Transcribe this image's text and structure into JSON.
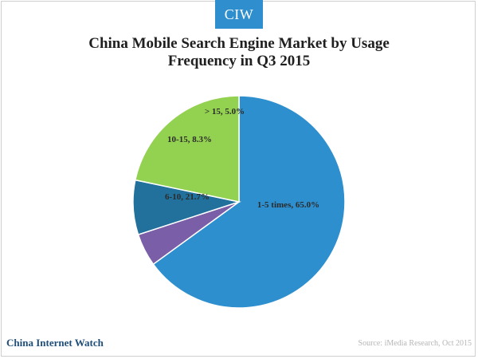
{
  "logo": {
    "text": "CIW"
  },
  "chart_data": {
    "type": "pie",
    "title": "China Mobile Search Engine Market by Usage Frequency in Q3 2015",
    "slices": [
      {
        "label": "1-5 times",
        "value": 65.0,
        "display": "1-5 times, 65.0%",
        "color": "#2e8fcf"
      },
      {
        "label": ">15",
        "value": 5.0,
        "display": "> 15, 5.0%",
        "color": "#7a5ea8"
      },
      {
        "label": "10-15",
        "value": 8.3,
        "display": "10-15, 8.3%",
        "color": "#21719c"
      },
      {
        "label": "6-10",
        "value": 21.7,
        "display": "6-10, 21.7%",
        "color": "#93d150"
      }
    ],
    "legend": "none"
  },
  "footer": {
    "brand": "China Internet Watch",
    "source": "Source: iMedia Research, Oct 2015"
  }
}
